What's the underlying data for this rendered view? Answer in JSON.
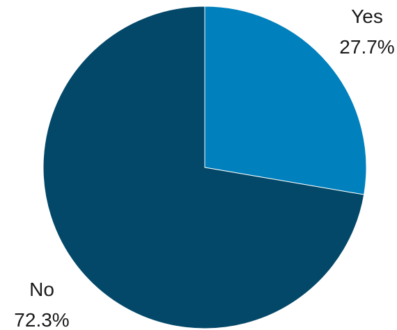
{
  "chart_data": {
    "type": "pie",
    "slices": [
      {
        "label": "Yes",
        "value": 27.7,
        "value_label": "27.7%",
        "color": "#0080BD"
      },
      {
        "label": "No",
        "value": 72.3,
        "value_label": "72.3%",
        "color": "#034868"
      }
    ],
    "start": "12 o'clock",
    "direction": "clockwise"
  }
}
